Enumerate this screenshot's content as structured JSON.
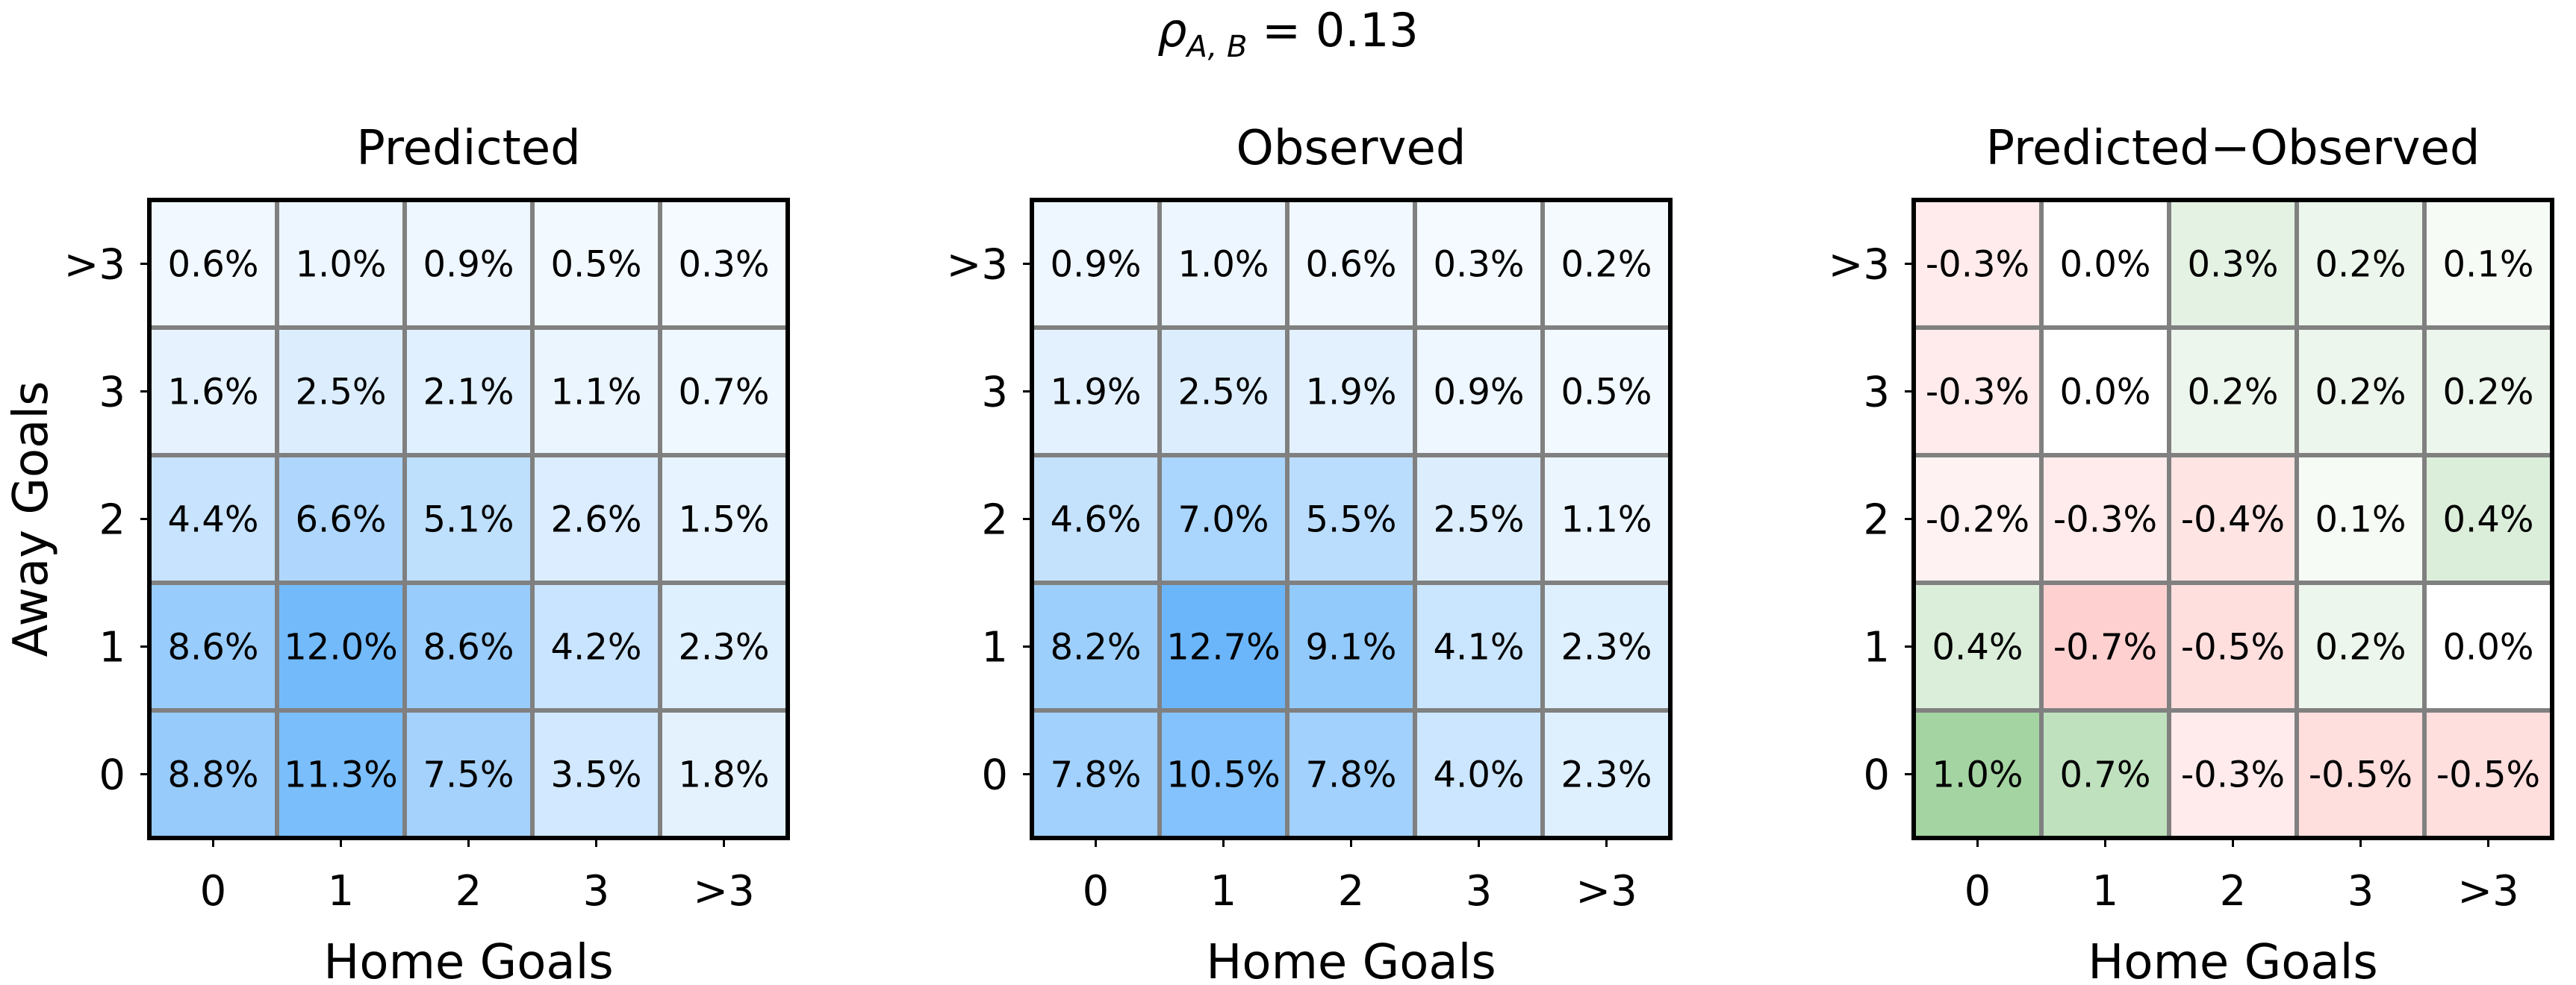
{
  "suptitle": {
    "symbol": "ρ",
    "subscript": "A, B",
    "value": " = 0.13"
  },
  "chart_data": [
    {
      "type": "heatmap",
      "title": "Predicted",
      "xlabel": "Home Goals",
      "ylabel": "Away Goals",
      "x_categories": [
        "0",
        "1",
        "2",
        "3",
        ">3"
      ],
      "y_categories": [
        ">3",
        "3",
        "2",
        "1",
        "0"
      ],
      "cmap": "blues",
      "values": [
        [
          0.6,
          1.0,
          0.9,
          0.5,
          0.3
        ],
        [
          1.6,
          2.5,
          2.1,
          1.1,
          0.7
        ],
        [
          4.4,
          6.6,
          5.1,
          2.6,
          1.5
        ],
        [
          8.6,
          12.0,
          8.6,
          4.2,
          2.3
        ],
        [
          8.8,
          11.3,
          7.5,
          3.5,
          1.8
        ]
      ],
      "labels": [
        [
          "0.6%",
          "1.0%",
          "0.9%",
          "0.5%",
          "0.3%"
        ],
        [
          "1.6%",
          "2.5%",
          "2.1%",
          "1.1%",
          "0.7%"
        ],
        [
          "4.4%",
          "6.6%",
          "5.1%",
          "2.6%",
          "1.5%"
        ],
        [
          "8.6%",
          "12.0%",
          "8.6%",
          "4.2%",
          "2.3%"
        ],
        [
          "8.8%",
          "11.3%",
          "7.5%",
          "3.5%",
          "1.8%"
        ]
      ]
    },
    {
      "type": "heatmap",
      "title": "Observed",
      "xlabel": "Home Goals",
      "ylabel": "",
      "x_categories": [
        "0",
        "1",
        "2",
        "3",
        ">3"
      ],
      "y_categories": [
        ">3",
        "3",
        "2",
        "1",
        "0"
      ],
      "cmap": "blues",
      "values": [
        [
          0.9,
          1.0,
          0.6,
          0.3,
          0.2
        ],
        [
          1.9,
          2.5,
          1.9,
          0.9,
          0.5
        ],
        [
          4.6,
          7.0,
          5.5,
          2.5,
          1.1
        ],
        [
          8.2,
          12.7,
          9.1,
          4.1,
          2.3
        ],
        [
          7.8,
          10.5,
          7.8,
          4.0,
          2.3
        ]
      ],
      "labels": [
        [
          "0.9%",
          "1.0%",
          "0.6%",
          "0.3%",
          "0.2%"
        ],
        [
          "1.9%",
          "2.5%",
          "1.9%",
          "0.9%",
          "0.5%"
        ],
        [
          "4.6%",
          "7.0%",
          "5.5%",
          "2.5%",
          "1.1%"
        ],
        [
          "8.2%",
          "12.7%",
          "9.1%",
          "4.1%",
          "2.3%"
        ],
        [
          "7.8%",
          "10.5%",
          "7.8%",
          "4.0%",
          "2.3%"
        ]
      ]
    },
    {
      "type": "heatmap",
      "title": "Predicted−Observed",
      "xlabel": "Home Goals",
      "ylabel": "",
      "x_categories": [
        "0",
        "1",
        "2",
        "3",
        ">3"
      ],
      "y_categories": [
        ">3",
        "3",
        "2",
        "1",
        "0"
      ],
      "cmap": "diverging-red-green",
      "values": [
        [
          -0.3,
          0.0,
          0.3,
          0.2,
          0.1
        ],
        [
          -0.3,
          0.0,
          0.2,
          0.2,
          0.2
        ],
        [
          -0.2,
          -0.3,
          -0.4,
          0.1,
          0.4
        ],
        [
          0.4,
          -0.7,
          -0.5,
          0.2,
          0.0
        ],
        [
          1.0,
          0.7,
          -0.3,
          -0.5,
          -0.5
        ]
      ],
      "labels": [
        [
          "-0.3%",
          "0.0%",
          "0.3%",
          "0.2%",
          "0.1%"
        ],
        [
          "-0.3%",
          "0.0%",
          "0.2%",
          "0.2%",
          "0.2%"
        ],
        [
          "-0.2%",
          "-0.3%",
          "-0.4%",
          "0.1%",
          "0.4%"
        ],
        [
          "0.4%",
          "-0.7%",
          "-0.5%",
          "0.2%",
          "0.0%"
        ],
        [
          "1.0%",
          "0.7%",
          "-0.3%",
          "-0.5%",
          "-0.5%"
        ]
      ]
    }
  ],
  "colors": {
    "blue_max": "#6bb6fb",
    "green_max": "#a4d4a2",
    "red_max": "#ffbcbc",
    "grid_line": "#808080",
    "frame": "#000000"
  }
}
